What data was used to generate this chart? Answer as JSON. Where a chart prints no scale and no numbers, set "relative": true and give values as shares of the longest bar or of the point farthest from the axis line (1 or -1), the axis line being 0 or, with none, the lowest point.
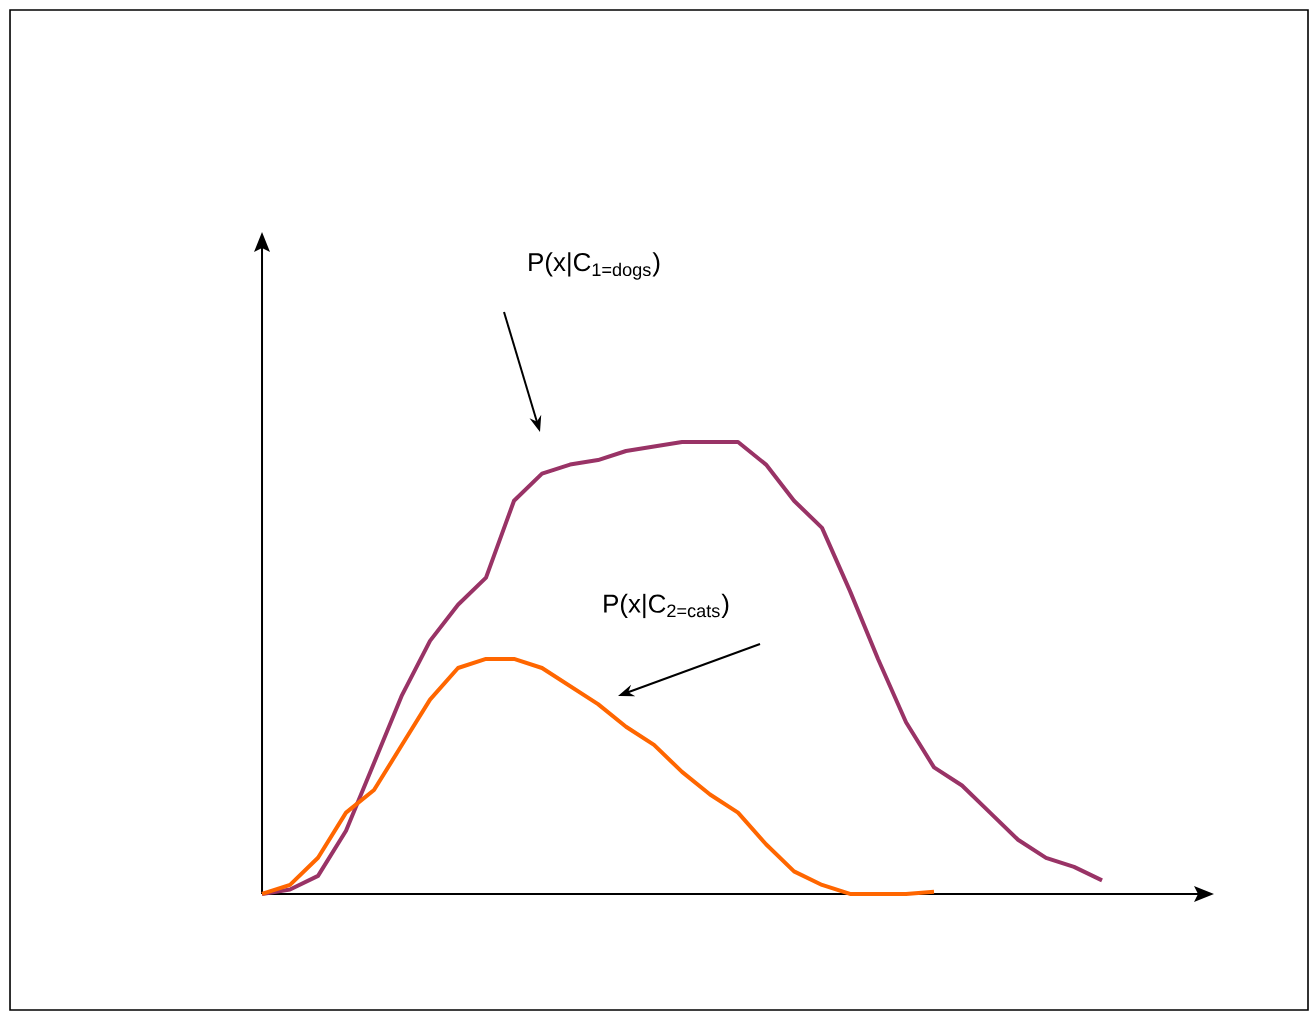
{
  "chart_data": {
    "type": "line",
    "relative": true,
    "marker": "none",
    "line_style": "solid",
    "categories": [
      null,
      null,
      null,
      null,
      null,
      null,
      null,
      null,
      null,
      null,
      null,
      null,
      null,
      null,
      null,
      null,
      null,
      null,
      null,
      null,
      null,
      null,
      null,
      null,
      null,
      null,
      null,
      null,
      null,
      null,
      null
    ],
    "series": [
      {
        "color": "#993366",
        "values": [
          0,
          0.01,
          0.04,
          0.14,
          0.29,
          0.44,
          0.56,
          0.64,
          0.7,
          0.87,
          0.93,
          0.95,
          0.96,
          0.98,
          0.99,
          1.0,
          1.0,
          1.0,
          0.95,
          0.87,
          0.81,
          0.67,
          0.52,
          0.38,
          0.28,
          0.24,
          0.18,
          0.12,
          0.08,
          0.06,
          0.03
        ]
      },
      {
        "color": "#ff6600",
        "values": [
          0,
          0.02,
          0.08,
          0.18,
          0.23,
          0.33,
          0.43,
          0.5,
          0.52,
          0.52,
          0.5,
          0.46,
          0.42,
          0.37,
          0.33,
          0.27,
          0.22,
          0.18,
          0.11,
          0.05,
          0.02,
          0,
          0,
          0,
          0.005,
          null,
          null,
          null,
          null,
          null,
          null
        ]
      }
    ],
    "annotations": [
      "P(x|C$_{1=dogs}$)",
      "P(x|C$_{2=cats}$)"
    ]
  }
}
